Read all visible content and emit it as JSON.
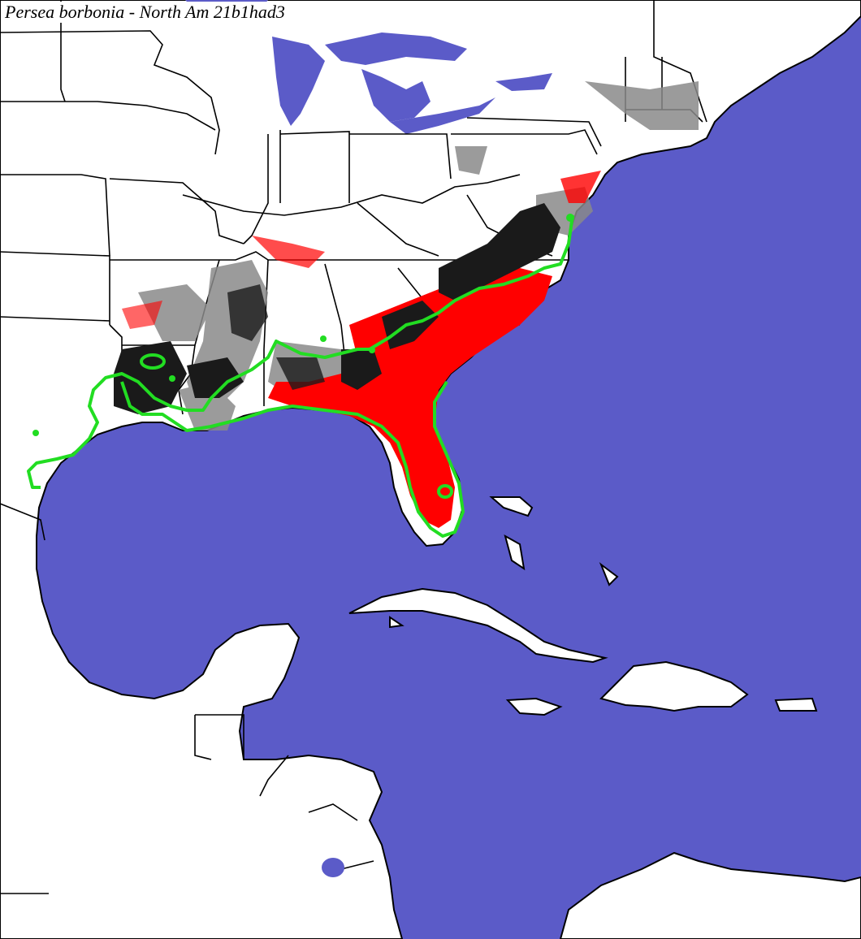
{
  "map": {
    "title": "Persea borbonia - North Am 21b1had3"
  },
  "legend_colors": {
    "ocean": "#5b5bc8",
    "land": "#ffffff",
    "predicted_suitable": "#ff0000",
    "predicted_high": "#1a1a1a",
    "predicted_moderate": "#8a8a8a",
    "observed_range_outline": "#22dd22",
    "borders": "#000000"
  }
}
